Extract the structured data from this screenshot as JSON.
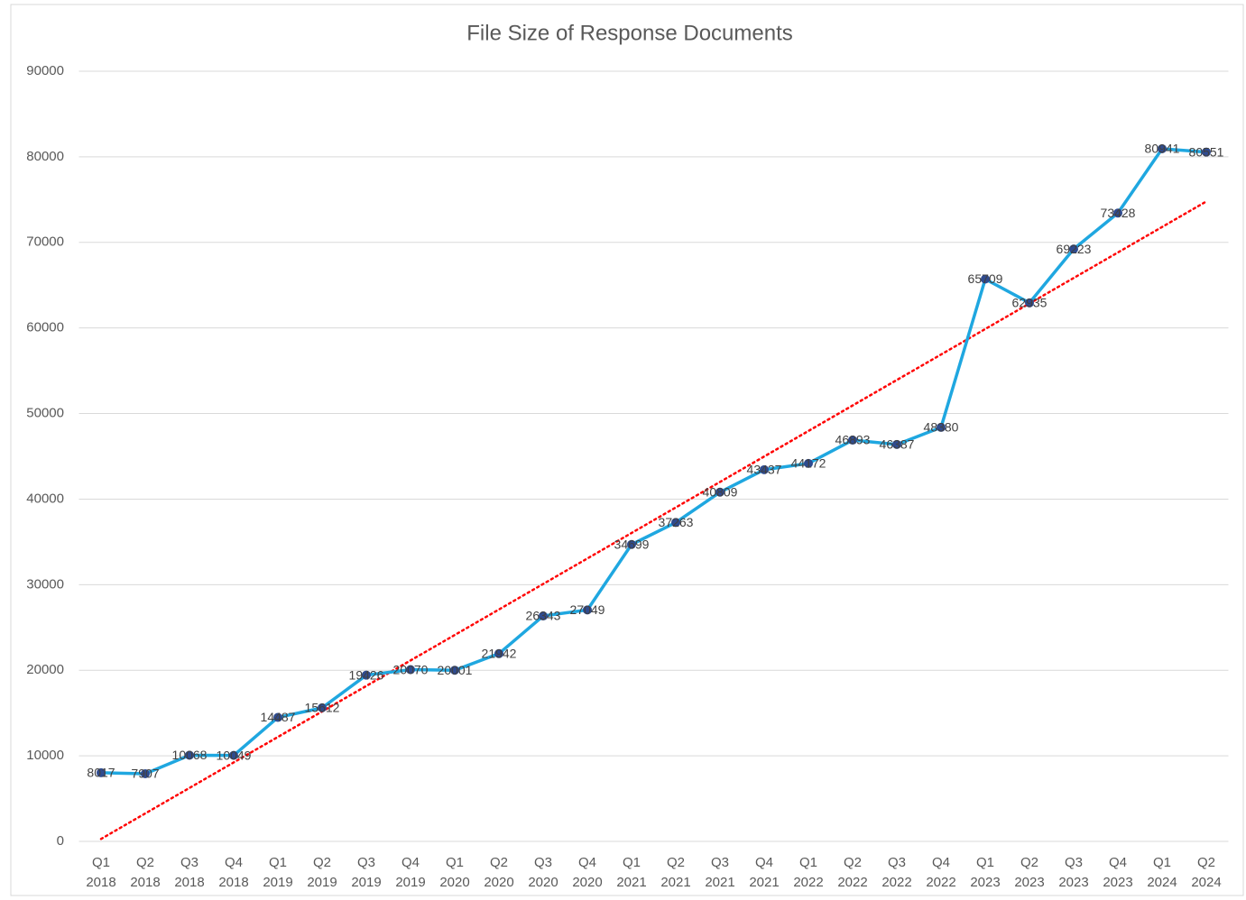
{
  "chart_data": {
    "type": "line",
    "title": "File Size of Response Documents",
    "categories": [
      [
        "Q1",
        "2018"
      ],
      [
        "Q2",
        "2018"
      ],
      [
        "Q3",
        "2018"
      ],
      [
        "Q4",
        "2018"
      ],
      [
        "Q1",
        "2019"
      ],
      [
        "Q2",
        "2019"
      ],
      [
        "Q3",
        "2019"
      ],
      [
        "Q4",
        "2019"
      ],
      [
        "Q1",
        "2020"
      ],
      [
        "Q2",
        "2020"
      ],
      [
        "Q3",
        "2020"
      ],
      [
        "Q4",
        "2020"
      ],
      [
        "Q1",
        "2021"
      ],
      [
        "Q2",
        "2021"
      ],
      [
        "Q3",
        "2021"
      ],
      [
        "Q4",
        "2021"
      ],
      [
        "Q1",
        "2022"
      ],
      [
        "Q2",
        "2022"
      ],
      [
        "Q3",
        "2022"
      ],
      [
        "Q4",
        "2022"
      ],
      [
        "Q1",
        "2023"
      ],
      [
        "Q2",
        "2023"
      ],
      [
        "Q3",
        "2023"
      ],
      [
        "Q4",
        "2023"
      ],
      [
        "Q1",
        "2024"
      ],
      [
        "Q2",
        "2024"
      ]
    ],
    "values": [
      8017,
      7907,
      10068,
      10049,
      14487,
      15612,
      19426,
      20070,
      20001,
      21942,
      26343,
      27049,
      34699,
      37263,
      40809,
      43437,
      44172,
      46893,
      46387,
      48380,
      65709,
      62935,
      69223,
      73428,
      80941,
      80551
    ],
    "color": "#1fa7e0",
    "marker_color": "#2f4b8f",
    "trendline": {
      "type": "linear",
      "color": "#ff0000"
    },
    "ylim": [
      0,
      90000
    ],
    "yticks": [
      0,
      10000,
      20000,
      30000,
      40000,
      50000,
      60000,
      70000,
      80000,
      90000
    ],
    "grid": true
  }
}
